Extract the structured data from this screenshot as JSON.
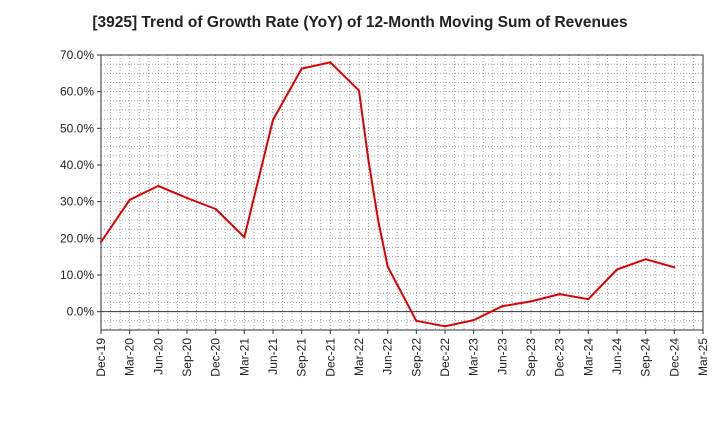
{
  "chart_data": {
    "type": "line",
    "title": "[3925]  Trend of Growth Rate (YoY) of 12-Month Moving Sum of Revenues",
    "xlabel": "",
    "ylabel": "",
    "ylim": [
      -5,
      70
    ],
    "y_ticks": [
      0,
      10,
      20,
      30,
      40,
      50,
      60,
      70
    ],
    "y_tick_labels": [
      "0.0%",
      "10.0%",
      "20.0%",
      "30.0%",
      "40.0%",
      "50.0%",
      "60.0%",
      "70.0%"
    ],
    "x_tick_labels": [
      "Dec-19",
      "Mar-20",
      "Jun-20",
      "Sep-20",
      "Dec-20",
      "Mar-21",
      "Jun-21",
      "Sep-21",
      "Dec-21",
      "Mar-22",
      "Jun-22",
      "Sep-22",
      "Dec-22",
      "Mar-23",
      "Jun-23",
      "Sep-23",
      "Dec-23",
      "Mar-24",
      "Jun-24",
      "Sep-24",
      "Dec-24",
      "Mar-25"
    ],
    "grid": true,
    "line_color": "#e00000",
    "series": [
      {
        "x": [
          "Dec-19",
          "Mar-20",
          "Jun-20",
          "Sep-20",
          "Dec-20",
          "Mar-21",
          "Jun-21",
          "Sep-21",
          "Dec-21",
          "Mar-22",
          "Apr-22",
          "May-22",
          "Jun-22",
          "Sep-22",
          "Dec-22",
          "Mar-23",
          "Jun-23",
          "Sep-23",
          "Dec-23",
          "Mar-24",
          "Jun-24",
          "Sep-24",
          "Dec-24"
        ],
        "x_index": [
          0,
          3,
          6,
          9,
          12,
          15,
          18,
          21,
          24,
          27,
          28,
          29,
          30,
          33,
          36,
          39,
          42,
          45,
          48,
          51,
          54,
          57,
          60
        ],
        "values": [
          19.0,
          30.5,
          34.3,
          31.0,
          28.0,
          20.3,
          52.3,
          66.3,
          68.0,
          60.3,
          41.0,
          25.0,
          12.3,
          -2.5,
          -4.0,
          -2.3,
          1.5,
          2.8,
          4.8,
          3.4,
          11.5,
          14.3,
          12.1
        ]
      }
    ]
  }
}
